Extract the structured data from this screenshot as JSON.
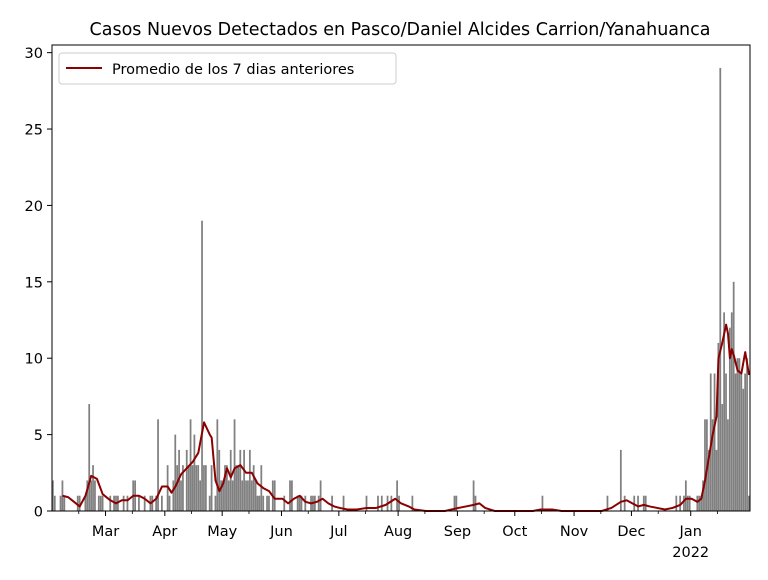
{
  "chart_data": {
    "type": "bar",
    "title": "Casos Nuevos Detectados en Pasco/Daniel Alcides Carrion/Yanahuanca",
    "xlabel": "",
    "ylabel": "",
    "ylim": [
      0,
      30.5
    ],
    "yticks": [
      0,
      5,
      10,
      15,
      20,
      25,
      30
    ],
    "xlim": [
      "2021-02-01",
      "2022-01-31"
    ],
    "xticks": [
      {
        "date": "2021-03-01",
        "label": "Mar"
      },
      {
        "date": "2021-04-01",
        "label": "Apr"
      },
      {
        "date": "2021-05-01",
        "label": "May"
      },
      {
        "date": "2021-06-01",
        "label": "Jun"
      },
      {
        "date": "2021-07-01",
        "label": "Jul"
      },
      {
        "date": "2021-08-01",
        "label": "Aug"
      },
      {
        "date": "2021-09-01",
        "label": "Sep"
      },
      {
        "date": "2021-10-01",
        "label": "Oct"
      },
      {
        "date": "2021-11-01",
        "label": "Nov"
      },
      {
        "date": "2021-12-01",
        "label": "Dec"
      },
      {
        "date": "2022-01-01",
        "label": "Jan",
        "sublabel": "2022"
      }
    ],
    "legend": {
      "position": "top-left",
      "label": "Promedio de los 7 dias anteriores"
    },
    "colors": {
      "bars": "#808080",
      "line": "#8b0000"
    },
    "bars": [
      [
        "2021-02-01",
        2
      ],
      [
        "2021-02-02",
        1
      ],
      [
        "2021-02-05",
        1
      ],
      [
        "2021-02-06",
        2
      ],
      [
        "2021-02-07",
        1
      ],
      [
        "2021-02-14",
        1
      ],
      [
        "2021-02-15",
        1
      ],
      [
        "2021-02-18",
        1
      ],
      [
        "2021-02-19",
        2
      ],
      [
        "2021-02-20",
        7
      ],
      [
        "2021-02-21",
        2
      ],
      [
        "2021-02-22",
        3
      ],
      [
        "2021-02-23",
        2
      ],
      [
        "2021-02-25",
        1
      ],
      [
        "2021-02-26",
        1
      ],
      [
        "2021-02-27",
        1
      ],
      [
        "2021-03-03",
        1
      ],
      [
        "2021-03-05",
        1
      ],
      [
        "2021-03-06",
        1
      ],
      [
        "2021-03-07",
        1
      ],
      [
        "2021-03-10",
        1
      ],
      [
        "2021-03-12",
        1
      ],
      [
        "2021-03-15",
        2
      ],
      [
        "2021-03-16",
        2
      ],
      [
        "2021-03-18",
        1
      ],
      [
        "2021-03-21",
        1
      ],
      [
        "2021-03-24",
        1
      ],
      [
        "2021-03-25",
        1
      ],
      [
        "2021-03-27",
        1
      ],
      [
        "2021-03-28",
        6
      ],
      [
        "2021-03-30",
        1
      ],
      [
        "2021-04-02",
        3
      ],
      [
        "2021-04-03",
        1
      ],
      [
        "2021-04-05",
        2
      ],
      [
        "2021-04-06",
        5
      ],
      [
        "2021-04-07",
        3
      ],
      [
        "2021-04-08",
        4
      ],
      [
        "2021-04-09",
        2
      ],
      [
        "2021-04-10",
        3
      ],
      [
        "2021-04-12",
        4
      ],
      [
        "2021-04-13",
        3
      ],
      [
        "2021-04-14",
        6
      ],
      [
        "2021-04-15",
        3
      ],
      [
        "2021-04-16",
        5
      ],
      [
        "2021-04-17",
        3
      ],
      [
        "2021-04-18",
        3
      ],
      [
        "2021-04-19",
        2
      ],
      [
        "2021-04-20",
        19
      ],
      [
        "2021-04-21",
        3
      ],
      [
        "2021-04-22",
        3
      ],
      [
        "2021-04-24",
        1
      ],
      [
        "2021-04-25",
        3
      ],
      [
        "2021-04-27",
        1
      ],
      [
        "2021-04-28",
        6
      ],
      [
        "2021-04-29",
        4
      ],
      [
        "2021-04-30",
        2
      ],
      [
        "2021-05-01",
        2
      ],
      [
        "2021-05-02",
        3
      ],
      [
        "2021-05-03",
        3
      ],
      [
        "2021-05-04",
        2
      ],
      [
        "2021-05-05",
        4
      ],
      [
        "2021-05-06",
        2
      ],
      [
        "2021-05-07",
        6
      ],
      [
        "2021-05-08",
        3
      ],
      [
        "2021-05-09",
        3
      ],
      [
        "2021-05-10",
        4
      ],
      [
        "2021-05-11",
        2
      ],
      [
        "2021-05-12",
        4
      ],
      [
        "2021-05-13",
        2
      ],
      [
        "2021-05-14",
        2
      ],
      [
        "2021-05-15",
        4
      ],
      [
        "2021-05-16",
        2
      ],
      [
        "2021-05-17",
        3
      ],
      [
        "2021-05-18",
        2
      ],
      [
        "2021-05-19",
        1
      ],
      [
        "2021-05-20",
        1
      ],
      [
        "2021-05-21",
        3
      ],
      [
        "2021-05-22",
        1
      ],
      [
        "2021-05-24",
        1
      ],
      [
        "2021-05-25",
        1
      ],
      [
        "2021-05-27",
        2
      ],
      [
        "2021-05-28",
        2
      ],
      [
        "2021-06-02",
        1
      ],
      [
        "2021-06-05",
        2
      ],
      [
        "2021-06-06",
        2
      ],
      [
        "2021-06-09",
        1
      ],
      [
        "2021-06-10",
        1
      ],
      [
        "2021-06-11",
        1
      ],
      [
        "2021-06-13",
        1
      ],
      [
        "2021-06-16",
        1
      ],
      [
        "2021-06-17",
        1
      ],
      [
        "2021-06-18",
        1
      ],
      [
        "2021-06-20",
        1
      ],
      [
        "2021-06-21",
        2
      ],
      [
        "2021-06-27",
        1
      ],
      [
        "2021-07-03",
        1
      ],
      [
        "2021-07-15",
        1
      ],
      [
        "2021-07-21",
        1
      ],
      [
        "2021-07-23",
        1
      ],
      [
        "2021-07-26",
        1
      ],
      [
        "2021-07-28",
        1
      ],
      [
        "2021-07-31",
        2
      ],
      [
        "2021-08-01",
        1
      ],
      [
        "2021-08-08",
        1
      ],
      [
        "2021-08-30",
        1
      ],
      [
        "2021-08-31",
        1
      ],
      [
        "2021-09-09",
        2
      ],
      [
        "2021-09-10",
        1
      ],
      [
        "2021-10-15",
        1
      ],
      [
        "2021-11-18",
        1
      ],
      [
        "2021-11-25",
        4
      ],
      [
        "2021-11-27",
        1
      ],
      [
        "2021-12-02",
        1
      ],
      [
        "2021-12-04",
        1
      ],
      [
        "2021-12-07",
        1
      ],
      [
        "2021-12-08",
        1
      ],
      [
        "2021-12-24",
        1
      ],
      [
        "2021-12-26",
        1
      ],
      [
        "2021-12-28",
        1
      ],
      [
        "2021-12-29",
        2
      ],
      [
        "2021-12-30",
        1
      ],
      [
        "2021-12-31",
        1
      ],
      [
        "2022-01-04",
        1
      ],
      [
        "2022-01-05",
        1
      ],
      [
        "2022-01-06",
        1
      ],
      [
        "2022-01-07",
        2
      ],
      [
        "2022-01-08",
        6
      ],
      [
        "2022-01-09",
        6
      ],
      [
        "2022-01-10",
        4
      ],
      [
        "2022-01-11",
        9
      ],
      [
        "2022-01-12",
        6
      ],
      [
        "2022-01-13",
        9
      ],
      [
        "2022-01-14",
        4
      ],
      [
        "2022-01-15",
        11
      ],
      [
        "2022-01-16",
        29
      ],
      [
        "2022-01-17",
        7
      ],
      [
        "2022-01-18",
        13
      ],
      [
        "2022-01-19",
        9
      ],
      [
        "2022-01-20",
        6
      ],
      [
        "2022-01-21",
        12
      ],
      [
        "2022-01-22",
        13
      ],
      [
        "2022-01-23",
        15
      ],
      [
        "2022-01-24",
        9
      ],
      [
        "2022-01-25",
        10
      ],
      [
        "2022-01-26",
        10
      ],
      [
        "2022-01-27",
        9
      ],
      [
        "2022-01-28",
        8
      ],
      [
        "2022-01-29",
        9
      ],
      [
        "2022-01-30",
        10
      ],
      [
        "2022-01-31",
        1
      ]
    ],
    "series": [
      {
        "name": "Promedio de los 7 dias anteriores",
        "points": [
          [
            "2021-02-06",
            1.0
          ],
          [
            "2021-02-09",
            0.9
          ],
          [
            "2021-02-12",
            0.6
          ],
          [
            "2021-02-15",
            0.3
          ],
          [
            "2021-02-18",
            1.0
          ],
          [
            "2021-02-21",
            2.3
          ],
          [
            "2021-02-24",
            2.1
          ],
          [
            "2021-02-27",
            1.1
          ],
          [
            "2021-03-03",
            0.7
          ],
          [
            "2021-03-06",
            0.5
          ],
          [
            "2021-03-09",
            0.7
          ],
          [
            "2021-03-12",
            0.7
          ],
          [
            "2021-03-15",
            1.0
          ],
          [
            "2021-03-18",
            1.0
          ],
          [
            "2021-03-21",
            0.8
          ],
          [
            "2021-03-24",
            0.5
          ],
          [
            "2021-03-27",
            0.8
          ],
          [
            "2021-03-30",
            1.6
          ],
          [
            "2021-04-02",
            1.6
          ],
          [
            "2021-04-04",
            1.2
          ],
          [
            "2021-04-06",
            1.6
          ],
          [
            "2021-04-09",
            2.4
          ],
          [
            "2021-04-12",
            2.8
          ],
          [
            "2021-04-15",
            3.2
          ],
          [
            "2021-04-18",
            3.8
          ],
          [
            "2021-04-21",
            5.8
          ],
          [
            "2021-04-24",
            5.0
          ],
          [
            "2021-04-25",
            4.8
          ],
          [
            "2021-04-27",
            2.0
          ],
          [
            "2021-04-29",
            1.3
          ],
          [
            "2021-05-01",
            1.8
          ],
          [
            "2021-05-03",
            2.8
          ],
          [
            "2021-05-05",
            2.2
          ],
          [
            "2021-05-07",
            2.8
          ],
          [
            "2021-05-10",
            3.0
          ],
          [
            "2021-05-13",
            2.5
          ],
          [
            "2021-05-16",
            2.5
          ],
          [
            "2021-05-19",
            1.8
          ],
          [
            "2021-05-22",
            1.5
          ],
          [
            "2021-05-25",
            1.3
          ],
          [
            "2021-05-28",
            0.8
          ],
          [
            "2021-06-01",
            0.8
          ],
          [
            "2021-06-04",
            0.5
          ],
          [
            "2021-06-07",
            0.8
          ],
          [
            "2021-06-10",
            1.0
          ],
          [
            "2021-06-13",
            0.6
          ],
          [
            "2021-06-16",
            0.5
          ],
          [
            "2021-06-19",
            0.6
          ],
          [
            "2021-06-22",
            0.8
          ],
          [
            "2021-06-25",
            0.5
          ],
          [
            "2021-06-28",
            0.3
          ],
          [
            "2021-07-01",
            0.2
          ],
          [
            "2021-07-05",
            0.1
          ],
          [
            "2021-07-10",
            0.1
          ],
          [
            "2021-07-15",
            0.2
          ],
          [
            "2021-07-20",
            0.2
          ],
          [
            "2021-07-25",
            0.4
          ],
          [
            "2021-07-30",
            0.8
          ],
          [
            "2021-08-02",
            0.5
          ],
          [
            "2021-08-06",
            0.3
          ],
          [
            "2021-08-09",
            0.1
          ],
          [
            "2021-08-15",
            0.0
          ],
          [
            "2021-08-25",
            0.0
          ],
          [
            "2021-09-01",
            0.2
          ],
          [
            "2021-09-05",
            0.3
          ],
          [
            "2021-09-09",
            0.4
          ],
          [
            "2021-09-12",
            0.5
          ],
          [
            "2021-09-15",
            0.2
          ],
          [
            "2021-09-20",
            0.0
          ],
          [
            "2021-10-10",
            0.0
          ],
          [
            "2021-10-14",
            0.1
          ],
          [
            "2021-10-20",
            0.1
          ],
          [
            "2021-10-25",
            0.0
          ],
          [
            "2021-11-15",
            0.0
          ],
          [
            "2021-11-20",
            0.2
          ],
          [
            "2021-11-25",
            0.6
          ],
          [
            "2021-11-28",
            0.7
          ],
          [
            "2021-12-01",
            0.5
          ],
          [
            "2021-12-04",
            0.3
          ],
          [
            "2021-12-07",
            0.4
          ],
          [
            "2021-12-10",
            0.3
          ],
          [
            "2021-12-14",
            0.2
          ],
          [
            "2021-12-18",
            0.1
          ],
          [
            "2021-12-22",
            0.2
          ],
          [
            "2021-12-26",
            0.4
          ],
          [
            "2021-12-29",
            0.8
          ],
          [
            "2022-01-01",
            0.8
          ],
          [
            "2022-01-04",
            0.6
          ],
          [
            "2022-01-06",
            0.8
          ],
          [
            "2022-01-08",
            2.0
          ],
          [
            "2022-01-10",
            3.5
          ],
          [
            "2022-01-12",
            5.0
          ],
          [
            "2022-01-14",
            6.2
          ],
          [
            "2022-01-15",
            10.0
          ],
          [
            "2022-01-17",
            11.0
          ],
          [
            "2022-01-19",
            12.2
          ],
          [
            "2022-01-20",
            11.6
          ],
          [
            "2022-01-21",
            10.0
          ],
          [
            "2022-01-22",
            10.6
          ],
          [
            "2022-01-23",
            10.2
          ],
          [
            "2022-01-25",
            9.2
          ],
          [
            "2022-01-27",
            9.0
          ],
          [
            "2022-01-29",
            10.4
          ],
          [
            "2022-01-31",
            8.9
          ]
        ]
      }
    ]
  }
}
